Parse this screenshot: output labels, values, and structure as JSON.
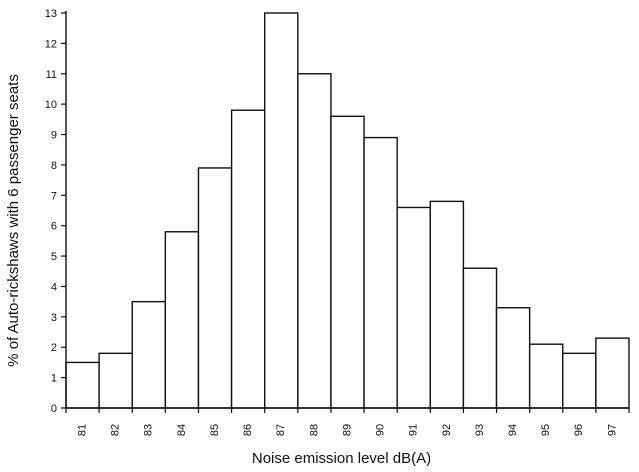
{
  "chart_data": {
    "type": "bar",
    "title": "",
    "xlabel": "Noise emission level dB(A)",
    "ylabel": "% of Auto-rickshaws with 6 passenger seats",
    "categories": [
      "81",
      "82",
      "83",
      "84",
      "85",
      "86",
      "87",
      "88",
      "89",
      "90",
      "91",
      "92",
      "93",
      "94",
      "95",
      "96",
      "97"
    ],
    "values": [
      1.5,
      1.8,
      3.5,
      5.8,
      7.9,
      9.8,
      13.0,
      11.0,
      9.6,
      8.9,
      6.6,
      6.8,
      4.6,
      3.3,
      2.1,
      1.8,
      2.3
    ],
    "ylim": [
      0,
      13
    ],
    "yticks": [
      "0",
      "1",
      "2",
      "3",
      "4",
      "5",
      "6",
      "7",
      "8",
      "9",
      "10",
      "11",
      "12",
      "13"
    ],
    "grid": false,
    "colors": {
      "bar_fill": "#ffffff",
      "bar_stroke": "#111111"
    }
  }
}
